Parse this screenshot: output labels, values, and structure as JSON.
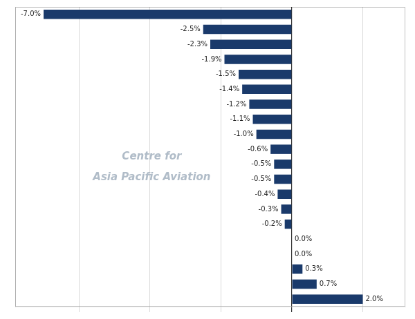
{
  "chart_data": {
    "type": "bar",
    "orientation": "horizontal",
    "categories": [
      null,
      null,
      null,
      null,
      null,
      null,
      null,
      null,
      null,
      null,
      null,
      null,
      null,
      null,
      null,
      null,
      null,
      null,
      null,
      null
    ],
    "values": [
      -7.0,
      -2.5,
      -2.3,
      -1.9,
      -1.5,
      -1.4,
      -1.2,
      -1.1,
      -1.0,
      -0.6,
      -0.5,
      -0.5,
      -0.4,
      -0.3,
      -0.2,
      0.0,
      0.0,
      0.3,
      0.7,
      2.0
    ],
    "value_labels": [
      "-7.0%",
      "-2.5%",
      "-2.3%",
      "-1.9%",
      "-1.5%",
      "-1.4%",
      "-1.2%",
      "-1.1%",
      "-1.0%",
      "-0.6%",
      "-0.5%",
      "-0.5%",
      "-0.4%",
      "-0.3%",
      "-0.2%",
      "0.0%",
      "0.0%",
      "0.3%",
      "0.7%",
      "2.0%"
    ],
    "data_labels": true,
    "color": "#1a3a6b",
    "xlim": [
      -7.8,
      3.2
    ],
    "xticks": [
      -6,
      -4,
      -2,
      0,
      2
    ],
    "tick_labels": false,
    "grid": true,
    "annotations": [
      "Centre for",
      "Asia Pacific Aviation"
    ]
  }
}
